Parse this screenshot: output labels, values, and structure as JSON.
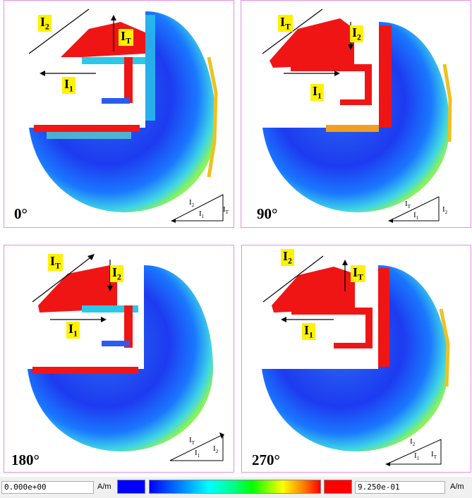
{
  "panels": [
    {
      "angle": "0°",
      "labels": {
        "left": "I2",
        "top": "IT",
        "bottom": "I1"
      },
      "triangle": [
        "I2",
        "I1",
        "IT"
      ]
    },
    {
      "angle": "90°",
      "labels": {
        "left": "IT",
        "top": "I2",
        "bottom": "I1"
      },
      "triangle": [
        "IT",
        "I1",
        "I2"
      ]
    },
    {
      "angle": "180°",
      "labels": {
        "left": "IT",
        "top": "I2",
        "bottom": "I1"
      },
      "triangle": [
        "IT",
        "I1",
        "I2"
      ]
    },
    {
      "angle": "270°",
      "labels": {
        "left": "I2",
        "top": "IT",
        "bottom": "I1"
      },
      "triangle": [
        "I2",
        "I1",
        "IT"
      ]
    }
  ],
  "legend": {
    "min_value": "0.000e+00",
    "max_value": "9.250e-01",
    "unit": "A/m",
    "colors": [
      "#0000ff",
      "#00ffff",
      "#00ff00",
      "#ffff00",
      "#ff0000"
    ]
  }
}
